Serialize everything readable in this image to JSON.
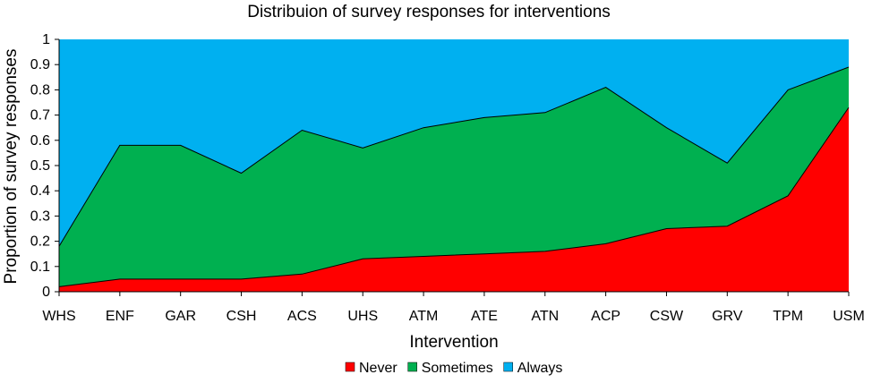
{
  "chart_data": {
    "type": "area",
    "stacked": true,
    "title": "Distribuion of survey responses for interventions",
    "xlabel": "Intervention",
    "ylabel": "Proportion of survey responses",
    "ylim": [
      0,
      1
    ],
    "yticks": [
      "0",
      "0.1",
      "0.2",
      "0.3",
      "0.4",
      "0.5",
      "0.6",
      "0.7",
      "0.8",
      "0.9",
      "1"
    ],
    "grid": false,
    "legend_position": "bottom",
    "categories": [
      "WHS",
      "ENF",
      "GAR",
      "CSH",
      "ACS",
      "UHS",
      "ATM",
      "ATE",
      "ATN",
      "ACP",
      "CSW",
      "GRV",
      "TPM",
      "USM"
    ],
    "series": [
      {
        "name": "Never",
        "color": "#ff0000",
        "values": [
          0.02,
          0.05,
          0.05,
          0.05,
          0.07,
          0.13,
          0.14,
          0.15,
          0.16,
          0.19,
          0.25,
          0.26,
          0.38,
          0.73
        ]
      },
      {
        "name": "Sometimes",
        "color": "#00b050",
        "values": [
          0.16,
          0.53,
          0.53,
          0.42,
          0.57,
          0.44,
          0.51,
          0.54,
          0.55,
          0.62,
          0.4,
          0.25,
          0.42,
          0.16
        ]
      },
      {
        "name": "Always",
        "color": "#00b0f0",
        "values": [
          0.82,
          0.42,
          0.42,
          0.53,
          0.36,
          0.43,
          0.35,
          0.31,
          0.29,
          0.19,
          0.35,
          0.49,
          0.2,
          0.11
        ]
      }
    ]
  }
}
